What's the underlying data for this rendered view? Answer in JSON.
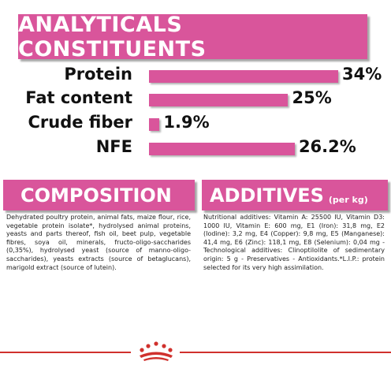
{
  "analytical": {
    "title": "ANALYTICALS CONSTITUENTS",
    "rows": [
      {
        "label": "Protein",
        "value": "34%",
        "percent": 34
      },
      {
        "label": "Fat content",
        "value": "25%",
        "percent": 25
      },
      {
        "label": "Crude fiber",
        "value": "1.9%",
        "percent": 1.9
      },
      {
        "label": "NFE",
        "value": "26.2%",
        "percent": 26.2
      }
    ]
  },
  "composition": {
    "title": "COMPOSITION",
    "text": "Dehydrated poultry protein, animal fats, maize flour, rice, vegetable protein isolate*, hydrolysed animal proteins, yeasts and parts thereof, fish oil, beet pulp, vegetable fibres, soya oil, minerals, fructo-oligo-saccharides (0,35%), hydrolysed yeast (source of manno-oligo-saccharides), yeasts extracts (source of betaglucans), marigold extract (source of lutein)."
  },
  "additives": {
    "title": "ADDITIVES",
    "unit": "(per kg)",
    "text": "Nutritional additives: Vitamin A: 25500 IU, Vitamin D3: 1000 IU, Vitamin E: 600 mg, E1 (Iron): 31,8 mg, E2 (Iodine): 3,2 mg, E4 (Copper): 9,8 mg, E5 (Manganese): 41,4 mg, E6 (Zinc): 118,1 mg, E8 (Selenium): 0,04 mg - Technological additives: Clinoptilolite of sedimentary origin: 5 g - Preservatives - Antioxidants.*L.I.P.: protein selected for its very high assimilation."
  },
  "colors": {
    "accent": "#d9559b",
    "footer_line": "#d0312d"
  },
  "footer": {
    "logo_icon": "royal-canin-crown-icon"
  }
}
